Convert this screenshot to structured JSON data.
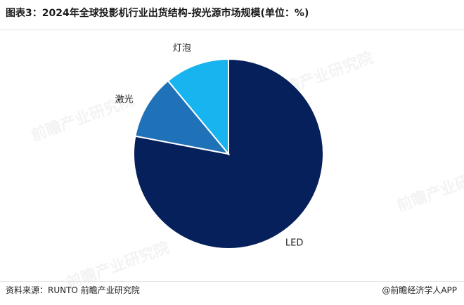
{
  "title": "图表3：2024年全球投影机行业出货结构-按光源市场规模(单位：%)",
  "source": "资料来源：RUNTO 前瞻产业研究院",
  "brand": "@前瞻经济学人APP",
  "watermark": "前瞻产业研究院",
  "chart_data": {
    "type": "pie",
    "title": "图表3：2024年全球投影机行业出货结构-按光源市场规模(单位：%)",
    "categories": [
      "LED",
      "激光",
      "灯泡"
    ],
    "values": [
      78,
      11,
      11
    ],
    "colors": [
      "#06205c",
      "#1f72b8",
      "#17b4f0"
    ],
    "start_angle_deg": 0,
    "direction": "clockwise"
  }
}
